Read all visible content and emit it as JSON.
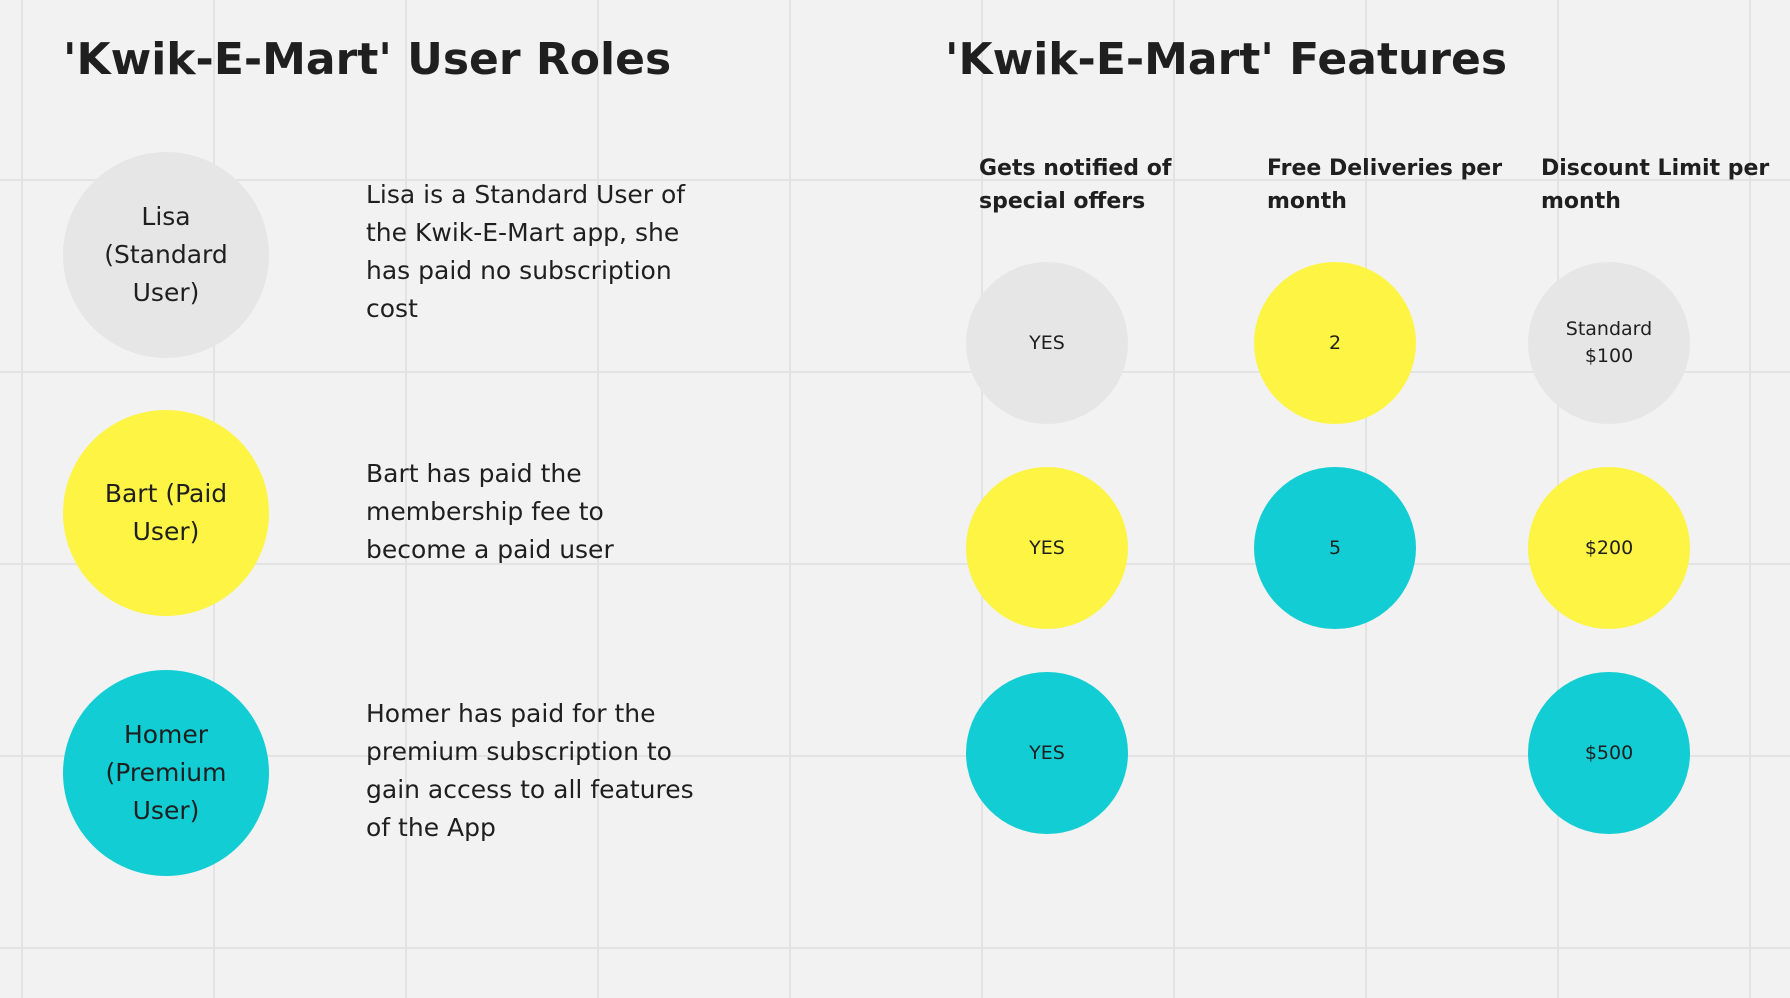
{
  "colors": {
    "standard": "#e6e6e6",
    "paid": "#fdf444",
    "premium": "#12cdd4",
    "background": "#f2f2f2",
    "grid": "#e3e3e3"
  },
  "roles_section": {
    "title": "'Kwik-E-Mart' User Roles",
    "roles": [
      {
        "name": "Lisa (Standard User)",
        "description": "Lisa is a Standard User of the Kwik-E-Mart app, she has paid no subscription cost"
      },
      {
        "name": "Bart (Paid User)",
        "description": "Bart has paid the membership fee to become a paid user"
      },
      {
        "name": "Homer (Premium User)",
        "description": "Homer has paid for the premium subscription to gain access to all features of the App"
      }
    ]
  },
  "features_section": {
    "title": "'Kwik-E-Mart' Features",
    "columns": [
      {
        "header": "Gets notified of special offers",
        "values": [
          "YES",
          "YES",
          "YES"
        ]
      },
      {
        "header": "Free Deliveries per month",
        "values": [
          "2",
          "5"
        ]
      },
      {
        "header": "Discount Limit per month",
        "values": [
          "Standard $100",
          "$200",
          "$500"
        ]
      }
    ]
  }
}
